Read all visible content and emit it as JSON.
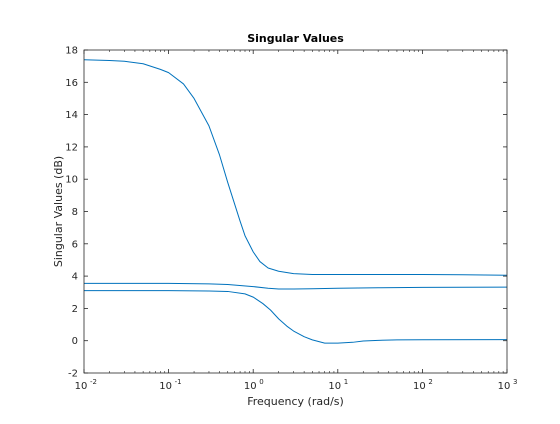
{
  "chart_data": {
    "type": "line",
    "title": "Singular Values",
    "xlabel": "Frequency (rad/s)",
    "ylabel": "Singular Values (dB)",
    "xscale": "log",
    "xlim": [
      0.01,
      1000
    ],
    "ylim": [
      -2,
      18
    ],
    "grid": false,
    "x_tick_labels": [
      {
        "base": "10",
        "exp": "-2"
      },
      {
        "base": "10",
        "exp": "-1"
      },
      {
        "base": "10",
        "exp": "0"
      },
      {
        "base": "10",
        "exp": "1"
      },
      {
        "base": "10",
        "exp": "2"
      },
      {
        "base": "10",
        "exp": "3"
      }
    ],
    "y_ticks": [
      -2,
      0,
      2,
      4,
      6,
      8,
      10,
      12,
      14,
      16,
      18
    ],
    "line_color": "#0072BD",
    "series": [
      {
        "x": [
          0.01,
          0.02,
          0.03,
          0.05,
          0.08,
          0.1,
          0.15,
          0.2,
          0.3,
          0.4,
          0.5,
          0.6,
          0.7,
          0.8,
          1.0,
          1.2,
          1.5,
          2.0,
          3.0,
          5.0,
          10,
          30,
          100,
          300,
          1000
        ],
        "y": [
          17.4,
          17.35,
          17.3,
          17.15,
          16.8,
          16.6,
          15.9,
          15.0,
          13.3,
          11.5,
          9.8,
          8.5,
          7.4,
          6.5,
          5.5,
          4.9,
          4.5,
          4.3,
          4.15,
          4.1,
          4.1,
          4.1,
          4.1,
          4.08,
          4.05
        ]
      },
      {
        "x": [
          0.01,
          0.05,
          0.1,
          0.3,
          0.5,
          1.0,
          1.5,
          2.0,
          3.0,
          5.0,
          10,
          30,
          100,
          1000
        ],
        "y": [
          3.55,
          3.55,
          3.55,
          3.52,
          3.48,
          3.35,
          3.25,
          3.2,
          3.2,
          3.22,
          3.25,
          3.28,
          3.3,
          3.32
        ]
      },
      {
        "x": [
          0.01,
          0.05,
          0.1,
          0.3,
          0.5,
          0.8,
          1.0,
          1.3,
          1.6,
          2.0,
          2.5,
          3.0,
          4.0,
          5.0,
          7.0,
          10,
          15,
          20,
          30,
          50,
          100,
          1000
        ],
        "y": [
          3.1,
          3.1,
          3.1,
          3.08,
          3.05,
          2.9,
          2.7,
          2.3,
          1.9,
          1.35,
          0.9,
          0.6,
          0.25,
          0.05,
          -0.15,
          -0.15,
          -0.1,
          -0.02,
          0.02,
          0.05,
          0.06,
          0.07
        ]
      }
    ]
  }
}
